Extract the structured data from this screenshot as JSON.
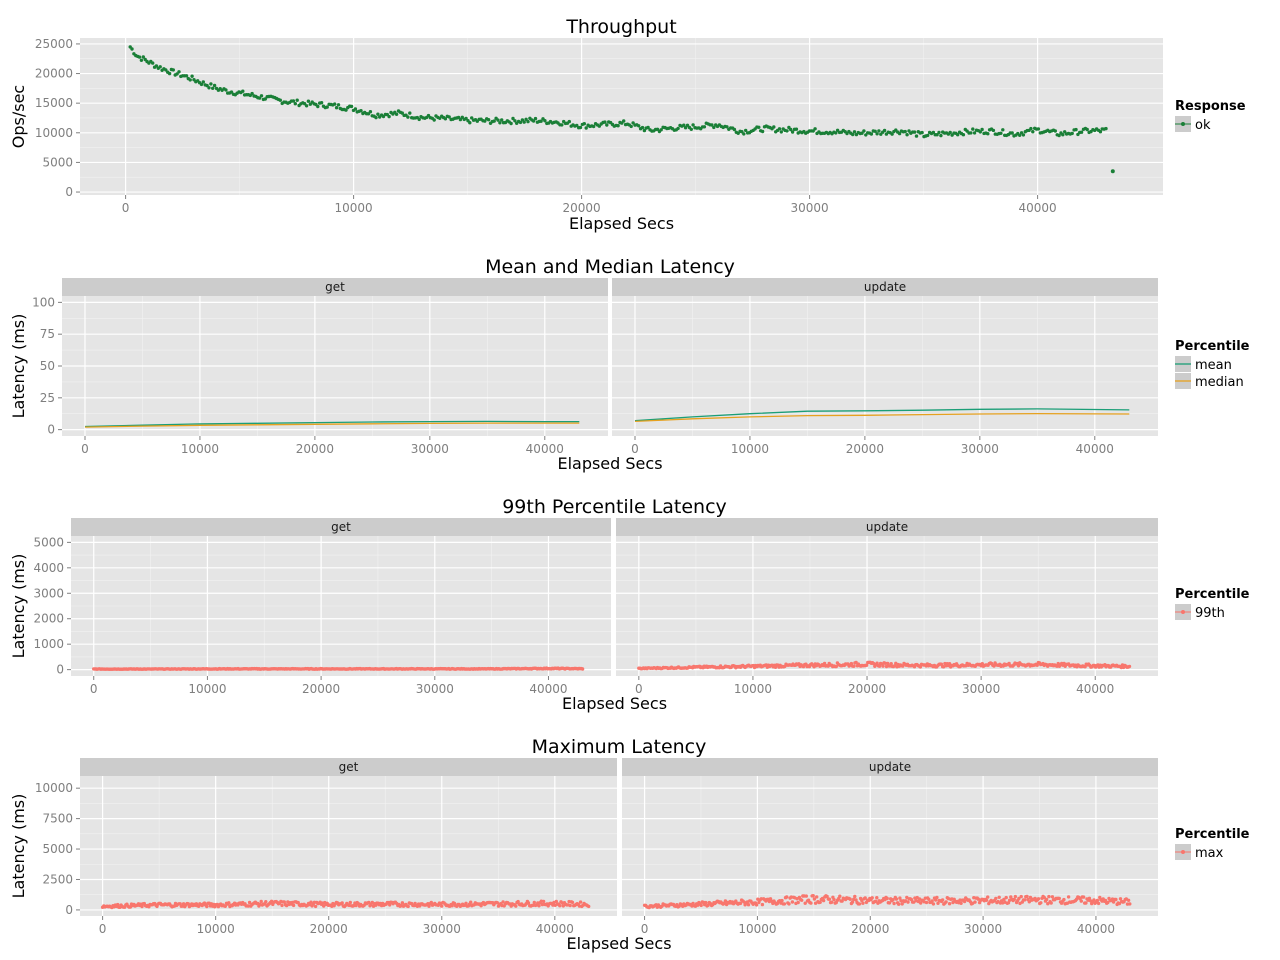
{
  "chart_data": [
    {
      "type": "scatter",
      "title": "Throughput",
      "xlabel": "Elapsed Secs",
      "ylabel": "Ops/sec",
      "xlim": [
        -2000,
        45500
      ],
      "ylim": [
        -500,
        26000
      ],
      "x_ticks": [
        "0",
        "10000",
        "20000",
        "30000",
        "40000"
      ],
      "y_ticks": [
        "0",
        "5000",
        "10000",
        "15000",
        "20000",
        "25000"
      ],
      "legend": {
        "title": "Response",
        "position": "right",
        "items": [
          {
            "label": "ok",
            "color": "#1a7f37"
          }
        ]
      },
      "series": [
        {
          "name": "ok",
          "color": "#1a7f37",
          "x": [
            200,
            500,
            1000,
            1500,
            2000,
            2500,
            3000,
            3500,
            4000,
            4500,
            5000,
            6000,
            7000,
            8000,
            9000,
            10000,
            11000,
            12000,
            13000,
            14000,
            15000,
            16000,
            17000,
            18000,
            19000,
            20000,
            21000,
            22000,
            23000,
            24000,
            25000,
            26000,
            27000,
            28000,
            29000,
            30000,
            31000,
            32000,
            33000,
            34000,
            35000,
            36000,
            37000,
            38000,
            39000,
            40000,
            41000,
            42000,
            43000,
            43300
          ],
          "values": [
            24500,
            23000,
            22000,
            21000,
            20300,
            19700,
            19000,
            18200,
            17500,
            17000,
            16700,
            16000,
            15300,
            14900,
            14600,
            14100,
            13000,
            13300,
            12600,
            12400,
            12100,
            12000,
            12000,
            12100,
            11800,
            11200,
            11400,
            11600,
            10400,
            10800,
            11000,
            11400,
            10200,
            10700,
            10500,
            10300,
            10200,
            9900,
            10100,
            10300,
            9600,
            9900,
            10200,
            10300,
            9800,
            10500,
            9800,
            10300,
            10400,
            3500
          ]
        }
      ]
    },
    {
      "type": "line",
      "title": "Mean and Median Latency",
      "xlabel": "Elapsed Secs",
      "ylabel": "Latency (ms)",
      "xlim": [
        -2000,
        45500
      ],
      "ylim": [
        -5,
        105
      ],
      "x_ticks": [
        "0",
        "10000",
        "20000",
        "30000",
        "40000"
      ],
      "y_ticks": [
        "0",
        "25",
        "50",
        "75",
        "100"
      ],
      "facets": [
        "get",
        "update"
      ],
      "legend": {
        "title": "Percentile",
        "position": "right",
        "items": [
          {
            "label": "mean",
            "color": "#1b9e77"
          },
          {
            "label": "median",
            "color": "#e6a11f"
          }
        ]
      },
      "series": [
        {
          "name": "mean",
          "facet": "get",
          "color": "#1b9e77",
          "x": [
            0,
            5000,
            10000,
            15000,
            20000,
            25000,
            30000,
            35000,
            40000,
            43000
          ],
          "values": [
            2.5,
            3.5,
            4.5,
            5.0,
            5.5,
            6.0,
            6.3,
            6.5,
            6.3,
            6.3
          ]
        },
        {
          "name": "median",
          "facet": "get",
          "color": "#e6a11f",
          "x": [
            0,
            5000,
            10000,
            15000,
            20000,
            25000,
            30000,
            35000,
            40000,
            43000
          ],
          "values": [
            2.0,
            2.8,
            3.4,
            3.8,
            4.2,
            4.6,
            4.9,
            5.1,
            5.1,
            5.1
          ]
        },
        {
          "name": "mean",
          "facet": "update",
          "color": "#1b9e77",
          "x": [
            0,
            5000,
            10000,
            15000,
            20000,
            25000,
            30000,
            35000,
            40000,
            43000
          ],
          "values": [
            7.0,
            10.0,
            12.5,
            14.5,
            14.8,
            15.3,
            16.0,
            16.3,
            15.8,
            15.5
          ]
        },
        {
          "name": "median",
          "facet": "update",
          "color": "#e6a11f",
          "x": [
            0,
            5000,
            10000,
            15000,
            20000,
            25000,
            30000,
            35000,
            40000,
            43000
          ],
          "values": [
            6.5,
            8.5,
            10.0,
            11.0,
            11.3,
            11.8,
            12.3,
            12.6,
            12.4,
            12.3
          ]
        }
      ]
    },
    {
      "type": "scatter",
      "title": "99th Percentile Latency",
      "xlabel": "Elapsed Secs",
      "ylabel": "Latency (ms)",
      "xlim": [
        -2000,
        45500
      ],
      "ylim": [
        -250,
        5250
      ],
      "x_ticks": [
        "0",
        "10000",
        "20000",
        "30000",
        "40000"
      ],
      "y_ticks": [
        "0",
        "1000",
        "2000",
        "3000",
        "4000",
        "5000"
      ],
      "facets": [
        "get",
        "update"
      ],
      "legend": {
        "title": "Percentile",
        "position": "right",
        "items": [
          {
            "label": "99th",
            "color": "#f8766d"
          }
        ]
      },
      "series": [
        {
          "name": "99th",
          "facet": "get",
          "color": "#f8766d",
          "x": [
            0,
            5000,
            10000,
            15000,
            20000,
            25000,
            30000,
            35000,
            40000,
            43000
          ],
          "values": [
            20,
            20,
            25,
            25,
            25,
            25,
            25,
            25,
            40,
            30
          ]
        },
        {
          "name": "99th",
          "facet": "update",
          "color": "#f8766d",
          "x": [
            0,
            5000,
            10000,
            15000,
            20000,
            25000,
            30000,
            35000,
            40000,
            43000
          ],
          "values": [
            40,
            80,
            110,
            150,
            180,
            140,
            160,
            170,
            130,
            110
          ]
        }
      ]
    },
    {
      "type": "scatter",
      "title": "Maximum Latency",
      "xlabel": "Elapsed Secs",
      "ylabel": "Latency (ms)",
      "xlim": [
        -2000,
        45500
      ],
      "ylim": [
        -500,
        11000
      ],
      "x_ticks": [
        "0",
        "10000",
        "20000",
        "30000",
        "40000"
      ],
      "y_ticks": [
        "0",
        "2500",
        "5000",
        "7500",
        "10000"
      ],
      "facets": [
        "get",
        "update"
      ],
      "legend": {
        "title": "Percentile",
        "position": "right",
        "items": [
          {
            "label": "max",
            "color": "#f8766d"
          }
        ]
      },
      "series": [
        {
          "name": "max",
          "facet": "get",
          "color": "#f8766d",
          "x": [
            0,
            5000,
            10000,
            15000,
            20000,
            25000,
            30000,
            35000,
            40000,
            43000
          ],
          "values": [
            250,
            350,
            350,
            450,
            380,
            400,
            380,
            420,
            450,
            380
          ]
        },
        {
          "name": "max",
          "facet": "update",
          "color": "#f8766d",
          "x": [
            0,
            5000,
            10000,
            15000,
            20000,
            25000,
            30000,
            35000,
            40000,
            43000
          ],
          "values": [
            250,
            400,
            550,
            750,
            650,
            620,
            650,
            700,
            650,
            550
          ]
        }
      ]
    }
  ]
}
